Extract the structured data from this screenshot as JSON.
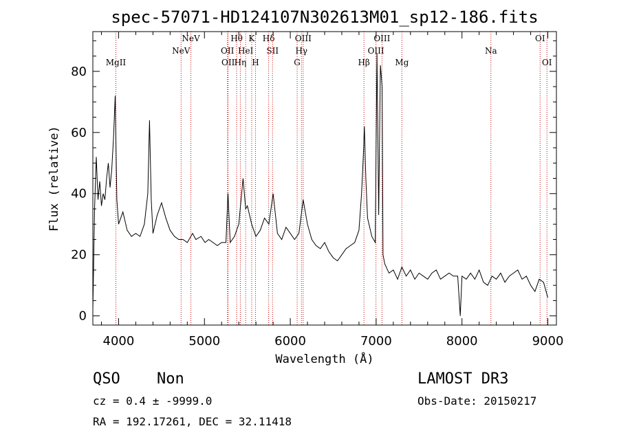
{
  "chart_data": {
    "type": "line",
    "title": "spec-57071-HD124107N302613M01_sp12-186.fits",
    "xlabel": "Wavelength (Å)",
    "ylabel": "Flux (relative)",
    "xlim": [
      3700,
      9100
    ],
    "ylim": [
      -3,
      93
    ],
    "x_ticks": [
      4000,
      5000,
      6000,
      7000,
      8000,
      9000
    ],
    "y_ticks": [
      0,
      20,
      40,
      60,
      80
    ],
    "grid": false,
    "line_color": "#000000",
    "marker_color": "#cc0000",
    "series": [
      {
        "x": [
          3700,
          3720,
          3740,
          3760,
          3780,
          3800,
          3820,
          3840,
          3860,
          3880,
          3900,
          3920,
          3940,
          3960,
          3980,
          4000,
          4050,
          4100,
          4150,
          4200,
          4250,
          4300,
          4340,
          4360,
          4380,
          4400,
          4450,
          4500,
          4550,
          4600,
          4650,
          4700,
          4750,
          4800,
          4862,
          4900,
          4960,
          5007,
          5050,
          5100,
          5150,
          5200,
          5250,
          5274,
          5300,
          5350,
          5400,
          5450,
          5480,
          5500,
          5550,
          5600,
          5650,
          5700,
          5750,
          5800,
          5850,
          5900,
          5950,
          6000,
          6050,
          6100,
          6150,
          6200,
          6250,
          6300,
          6350,
          6400,
          6450,
          6500,
          6550,
          6600,
          6650,
          6700,
          6750,
          6800,
          6830,
          6850,
          6863,
          6880,
          6900,
          6950,
          6990,
          7010,
          7030,
          7050,
          7070,
          7080,
          7100,
          7150,
          7200,
          7250,
          7300,
          7350,
          7400,
          7450,
          7500,
          7550,
          7600,
          7650,
          7700,
          7750,
          7800,
          7850,
          7900,
          7950,
          7980,
          8000,
          8050,
          8100,
          8150,
          8200,
          8250,
          8300,
          8350,
          8400,
          8450,
          8500,
          8550,
          8600,
          8650,
          8700,
          8750,
          8800,
          8850,
          8900,
          8950,
          9000
        ],
        "y": [
          2,
          35,
          52,
          38,
          44,
          36,
          40,
          38,
          45,
          50,
          42,
          48,
          58,
          72,
          38,
          30,
          34,
          28,
          26,
          27,
          26,
          30,
          40,
          64,
          38,
          27,
          33,
          37,
          32,
          28,
          26,
          25,
          25,
          24,
          27,
          25,
          26,
          24,
          25,
          24,
          23,
          24,
          24,
          40,
          24,
          26,
          30,
          45,
          35,
          36,
          30,
          26,
          28,
          32,
          30,
          40,
          27,
          25,
          29,
          27,
          25,
          27,
          38,
          30,
          25,
          23,
          22,
          24,
          21,
          19,
          18,
          20,
          22,
          23,
          24,
          28,
          40,
          52,
          62,
          45,
          32,
          26,
          24,
          86,
          33,
          82,
          75,
          20,
          17,
          14,
          15,
          12,
          16,
          13,
          15,
          12,
          14,
          13,
          12,
          14,
          15,
          12,
          13,
          14,
          13,
          13,
          0,
          13,
          12,
          14,
          12,
          15,
          11,
          10,
          13,
          12,
          14,
          11,
          13,
          14,
          15,
          12,
          13,
          10,
          8,
          12,
          11,
          6
        ]
      }
    ],
    "spectral_lines": [
      {
        "label": "MgII",
        "x": 3968,
        "row": 3
      },
      {
        "label": "NeV",
        "x": 4728,
        "row": 2
      },
      {
        "label": "NeV",
        "x": 4842,
        "row": 1
      },
      {
        "label": "OII",
        "x": 5268,
        "row": 2
      },
      {
        "label": "OII",
        "x": 5276,
        "row": 3
      },
      {
        "label": "Hθ",
        "x": 5375,
        "row": 1
      },
      {
        "label": "Hη",
        "x": 5418,
        "row": 3
      },
      {
        "label": "HeI",
        "x": 5480,
        "row": 2
      },
      {
        "label": "K",
        "x": 5550,
        "row": 1
      },
      {
        "label": "H",
        "x": 5595,
        "row": 3
      },
      {
        "label": "Hδ",
        "x": 5748,
        "row": 1
      },
      {
        "label": "SII",
        "x": 5793,
        "row": 2
      },
      {
        "label": "G",
        "x": 6080,
        "row": 3
      },
      {
        "label": "Hγ",
        "x": 6130,
        "row": 2
      },
      {
        "label": "OIII",
        "x": 6150,
        "row": 1
      },
      {
        "label": "Hβ",
        "x": 6858,
        "row": 3
      },
      {
        "label": "OIII",
        "x": 6998,
        "row": 2
      },
      {
        "label": "OIII",
        "x": 7068,
        "row": 1
      },
      {
        "label": "Mg",
        "x": 7300,
        "row": 3
      },
      {
        "label": "Na",
        "x": 8337,
        "row": 2
      },
      {
        "label": "OI",
        "x": 8910,
        "row": 1
      },
      {
        "label": "OI",
        "x": 8990,
        "row": 3
      }
    ]
  },
  "info": {
    "class": "QSO",
    "subclass": "Non",
    "cz": "cz = 0.4 ± -9999.0",
    "radec": "RA = 192.17261, DEC =  32.11418",
    "survey": "LAMOST DR3",
    "obs_date": "Obs-Date: 20150217"
  }
}
